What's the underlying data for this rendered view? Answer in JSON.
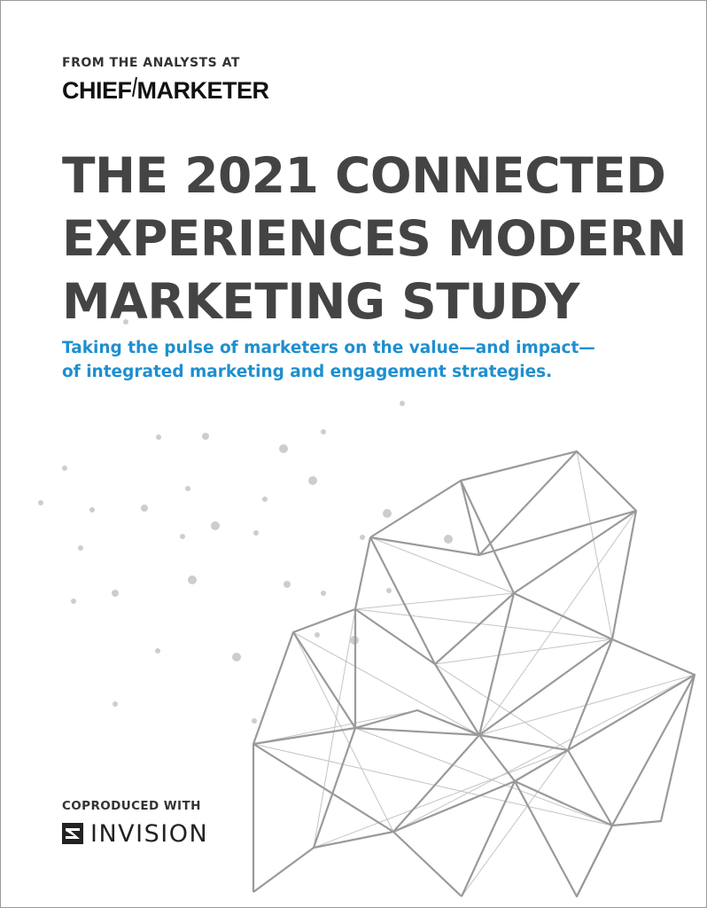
{
  "header": {
    "kicker": "FROM THE ANALYSTS AT",
    "brand_left": "CHIEF",
    "brand_right": "MARKETER"
  },
  "title_lines": [
    "THE 2021 CONNECTED",
    "EXPERIENCES MODERN",
    "MARKETING STUDY"
  ],
  "subtitle_lines": [
    "Taking the pulse of marketers on the value—and impact—",
    "of integrated marketing and engagement strategies."
  ],
  "footer": {
    "coproduced_label": "COPRODUCED WITH",
    "partner_icon": "invision-logo-icon",
    "partner_name": "INVISION"
  },
  "colors": {
    "title": "#444444",
    "subtitle": "#1e8fcf",
    "network_lines": "#9a9a9a",
    "dots": "#cccccc"
  }
}
